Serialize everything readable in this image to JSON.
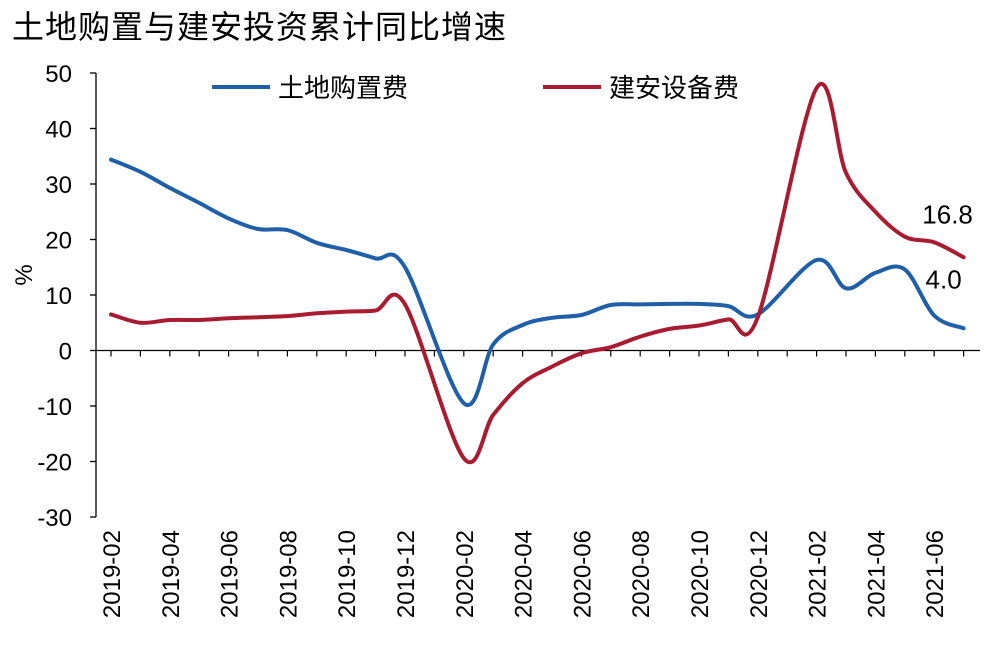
{
  "chart_data": {
    "type": "line",
    "title": "土地购置与建安投资累计同比增速",
    "ylabel": "%",
    "xlabel": "",
    "ylim": [
      -30,
      50
    ],
    "yticks": [
      50,
      40,
      30,
      20,
      10,
      0,
      -10,
      -20,
      -30
    ],
    "xticks": [
      "2019-02",
      "2019-04",
      "2019-06",
      "2019-08",
      "2019-10",
      "2019-12",
      "2020-02",
      "2020-04",
      "2020-06",
      "2020-08",
      "2020-10",
      "2020-12",
      "2021-02",
      "2021-04",
      "2021-06"
    ],
    "legend_position": "top",
    "grid": false,
    "x": [
      "2019-02",
      "2019-03",
      "2019-04",
      "2019-05",
      "2019-06",
      "2019-07",
      "2019-08",
      "2019-09",
      "2019-10",
      "2019-11",
      "2019-12",
      "2020-02",
      "2020-03",
      "2020-04",
      "2020-05",
      "2020-06",
      "2020-07",
      "2020-08",
      "2020-09",
      "2020-10",
      "2020-11",
      "2020-12",
      "2021-02",
      "2021-03",
      "2021-04",
      "2021-05",
      "2021-06",
      "2021-07"
    ],
    "series": [
      {
        "name": "土地购置费",
        "color": "#1f5fa8",
        "values": [
          34.4,
          32.2,
          29.3,
          26.6,
          23.8,
          21.9,
          21.7,
          19.4,
          18.1,
          16.6,
          15.0,
          -9.5,
          1.1,
          4.6,
          5.9,
          6.4,
          8.2,
          8.3,
          8.4,
          8.4,
          8.0,
          6.5,
          16.3,
          11.2,
          14.0,
          14.6,
          6.3,
          4.0
        ]
      },
      {
        "name": "建安设备费",
        "color": "#a81b30",
        "values": [
          6.5,
          5.0,
          5.5,
          5.5,
          5.8,
          6.0,
          6.2,
          6.7,
          7.0,
          7.2,
          8.3,
          -19.4,
          -11.6,
          -5.9,
          -2.9,
          -0.5,
          0.6,
          2.5,
          3.9,
          4.5,
          5.6,
          6.0,
          47.3,
          32.0,
          25.0,
          20.5,
          19.5,
          16.8
        ]
      }
    ],
    "annotations": [
      {
        "series": 1,
        "index": 27,
        "text": "16.8"
      },
      {
        "series": 0,
        "index": 27,
        "text": "4.0"
      }
    ]
  }
}
